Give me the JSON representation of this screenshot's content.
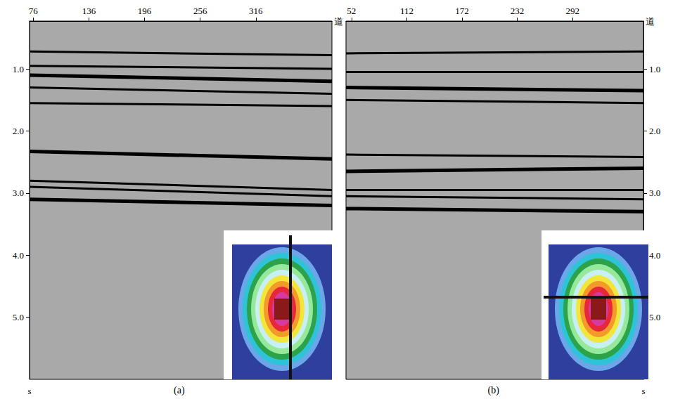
{
  "chart_data": [
    {
      "type": "line",
      "title": "(a)",
      "x_name": "道",
      "y_name": "s",
      "xlim": [
        72,
        398
      ],
      "xticks": [
        76,
        136,
        196,
        256,
        316
      ],
      "ylim": [
        0.23,
        6.0
      ],
      "yticks": [
        {
          "value": 1,
          "label": "1.0"
        },
        {
          "value": 2,
          "label": "2.0"
        },
        {
          "value": 3,
          "label": "3.0"
        },
        {
          "value": 4,
          "label": "4.0"
        },
        {
          "value": 5,
          "label": "5.0"
        }
      ],
      "series": [
        {
          "x": [
            72,
            398
          ],
          "values": [
            0.72,
            0.78
          ]
        },
        {
          "x": [
            72,
            398
          ],
          "values": [
            0.95,
            1.0
          ]
        },
        {
          "x": [
            72,
            398
          ],
          "values": [
            1.1,
            1.2
          ]
        },
        {
          "x": [
            72,
            398
          ],
          "values": [
            1.3,
            1.4
          ]
        },
        {
          "x": [
            72,
            398
          ],
          "values": [
            1.55,
            1.6
          ]
        },
        {
          "x": [
            72,
            398
          ],
          "values": [
            2.33,
            2.45
          ]
        },
        {
          "x": [
            72,
            398
          ],
          "values": [
            2.8,
            2.95
          ]
        },
        {
          "x": [
            72,
            398
          ],
          "values": [
            2.9,
            3.05
          ]
        },
        {
          "x": [
            72,
            398
          ],
          "values": [
            3.1,
            3.2
          ]
        }
      ]
    },
    {
      "type": "line",
      "title": "(b)",
      "x_name": "道",
      "y_name": "s",
      "xlim": [
        46,
        369
      ],
      "xticks": [
        52,
        112,
        172,
        232,
        292
      ],
      "ylim": [
        0.23,
        6.0
      ],
      "yticks": [
        {
          "value": 1,
          "label": "1.0"
        },
        {
          "value": 2,
          "label": "2.0"
        },
        {
          "value": 3,
          "label": "3.0"
        },
        {
          "value": 4,
          "label": "4.0"
        },
        {
          "value": 5,
          "label": "5.0"
        }
      ],
      "series": [
        {
          "x": [
            46,
            369
          ],
          "values": [
            0.75,
            0.72
          ]
        },
        {
          "x": [
            46,
            369
          ],
          "values": [
            1.05,
            1.05
          ]
        },
        {
          "x": [
            46,
            369
          ],
          "values": [
            1.3,
            1.35
          ]
        },
        {
          "x": [
            46,
            369
          ],
          "values": [
            1.5,
            1.55
          ]
        },
        {
          "x": [
            46,
            369
          ],
          "values": [
            2.38,
            2.42
          ]
        },
        {
          "x": [
            46,
            369
          ],
          "values": [
            2.65,
            2.6
          ]
        },
        {
          "x": [
            46,
            369
          ],
          "values": [
            2.95,
            2.95
          ]
        },
        {
          "x": [
            46,
            369
          ],
          "values": [
            3.05,
            3.1
          ]
        },
        {
          "x": [
            46,
            369
          ],
          "values": [
            3.25,
            3.3
          ]
        }
      ]
    }
  ]
}
